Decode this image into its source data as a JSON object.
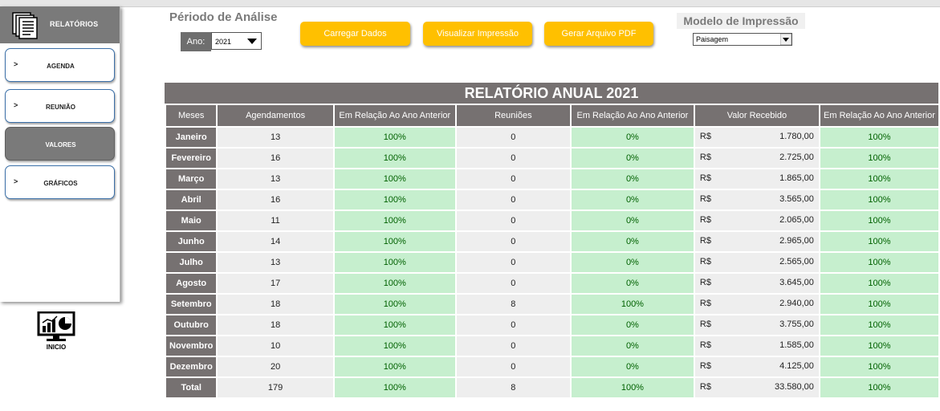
{
  "sidebar": {
    "title": "RELATÓRIOS",
    "items": [
      {
        "arrow": ">",
        "label": "AGENDA",
        "active": false
      },
      {
        "arrow": ">",
        "label": "REUNIÃO",
        "active": false
      },
      {
        "arrow": "",
        "label": "VALORES",
        "active": true
      },
      {
        "arrow": ">",
        "label": "GRÁFICOS",
        "active": false
      }
    ],
    "home_label": "INICIO",
    "home_icon": "dashboard-monitor-icon",
    "header_icon": "documents-stack-icon"
  },
  "period": {
    "title": "Périodo de Análise",
    "year_label": "Ano:",
    "year_value": "2021"
  },
  "buttons": {
    "load": "Carregar Dados",
    "preview": "Visualizar Impressão",
    "pdf": "Gerar Arquivo PDF"
  },
  "print_model": {
    "title": "Modelo de Impressão",
    "value": "Paisagem"
  },
  "colors": {
    "header_gray": "#767171",
    "button_yellow": "#ffc000",
    "pct_green_bg": "#c6efce",
    "pct_green_text": "#006100"
  },
  "report": {
    "title": "RELATÓRIO ANUAL 2021",
    "headers": [
      "Meses",
      "Agendamentos",
      "Em Relação Ao Ano Anterior",
      "Reuniões",
      "Em Relação Ao Ano Anterior",
      "Valor Recebido",
      "Em Relação Ao Ano Anterior"
    ],
    "currency": "R$",
    "rows": [
      {
        "month": "Janeiro",
        "agend": "13",
        "agend_pct": "100%",
        "reun": "0",
        "reun_pct": "0%",
        "valor": "1.780,00",
        "valor_pct": "100%"
      },
      {
        "month": "Fevereiro",
        "agend": "16",
        "agend_pct": "100%",
        "reun": "0",
        "reun_pct": "0%",
        "valor": "2.725,00",
        "valor_pct": "100%"
      },
      {
        "month": "Março",
        "agend": "13",
        "agend_pct": "100%",
        "reun": "0",
        "reun_pct": "0%",
        "valor": "1.865,00",
        "valor_pct": "100%"
      },
      {
        "month": "Abril",
        "agend": "16",
        "agend_pct": "100%",
        "reun": "0",
        "reun_pct": "0%",
        "valor": "3.565,00",
        "valor_pct": "100%"
      },
      {
        "month": "Maio",
        "agend": "11",
        "agend_pct": "100%",
        "reun": "0",
        "reun_pct": "0%",
        "valor": "2.065,00",
        "valor_pct": "100%"
      },
      {
        "month": "Junho",
        "agend": "14",
        "agend_pct": "100%",
        "reun": "0",
        "reun_pct": "0%",
        "valor": "2.965,00",
        "valor_pct": "100%"
      },
      {
        "month": "Julho",
        "agend": "13",
        "agend_pct": "100%",
        "reun": "0",
        "reun_pct": "0%",
        "valor": "2.565,00",
        "valor_pct": "100%"
      },
      {
        "month": "Agosto",
        "agend": "17",
        "agend_pct": "100%",
        "reun": "0",
        "reun_pct": "0%",
        "valor": "3.645,00",
        "valor_pct": "100%"
      },
      {
        "month": "Setembro",
        "agend": "18",
        "agend_pct": "100%",
        "reun": "8",
        "reun_pct": "100%",
        "valor": "2.940,00",
        "valor_pct": "100%"
      },
      {
        "month": "Outubro",
        "agend": "18",
        "agend_pct": "100%",
        "reun": "0",
        "reun_pct": "0%",
        "valor": "3.755,00",
        "valor_pct": "100%"
      },
      {
        "month": "Novembro",
        "agend": "10",
        "agend_pct": "100%",
        "reun": "0",
        "reun_pct": "0%",
        "valor": "1.585,00",
        "valor_pct": "100%"
      },
      {
        "month": "Dezembro",
        "agend": "20",
        "agend_pct": "100%",
        "reun": "0",
        "reun_pct": "0%",
        "valor": "4.125,00",
        "valor_pct": "100%"
      }
    ],
    "total": {
      "month": "Total",
      "agend": "179",
      "agend_pct": "100%",
      "reun": "8",
      "reun_pct": "100%",
      "valor": "33.580,00",
      "valor_pct": "100%"
    }
  }
}
